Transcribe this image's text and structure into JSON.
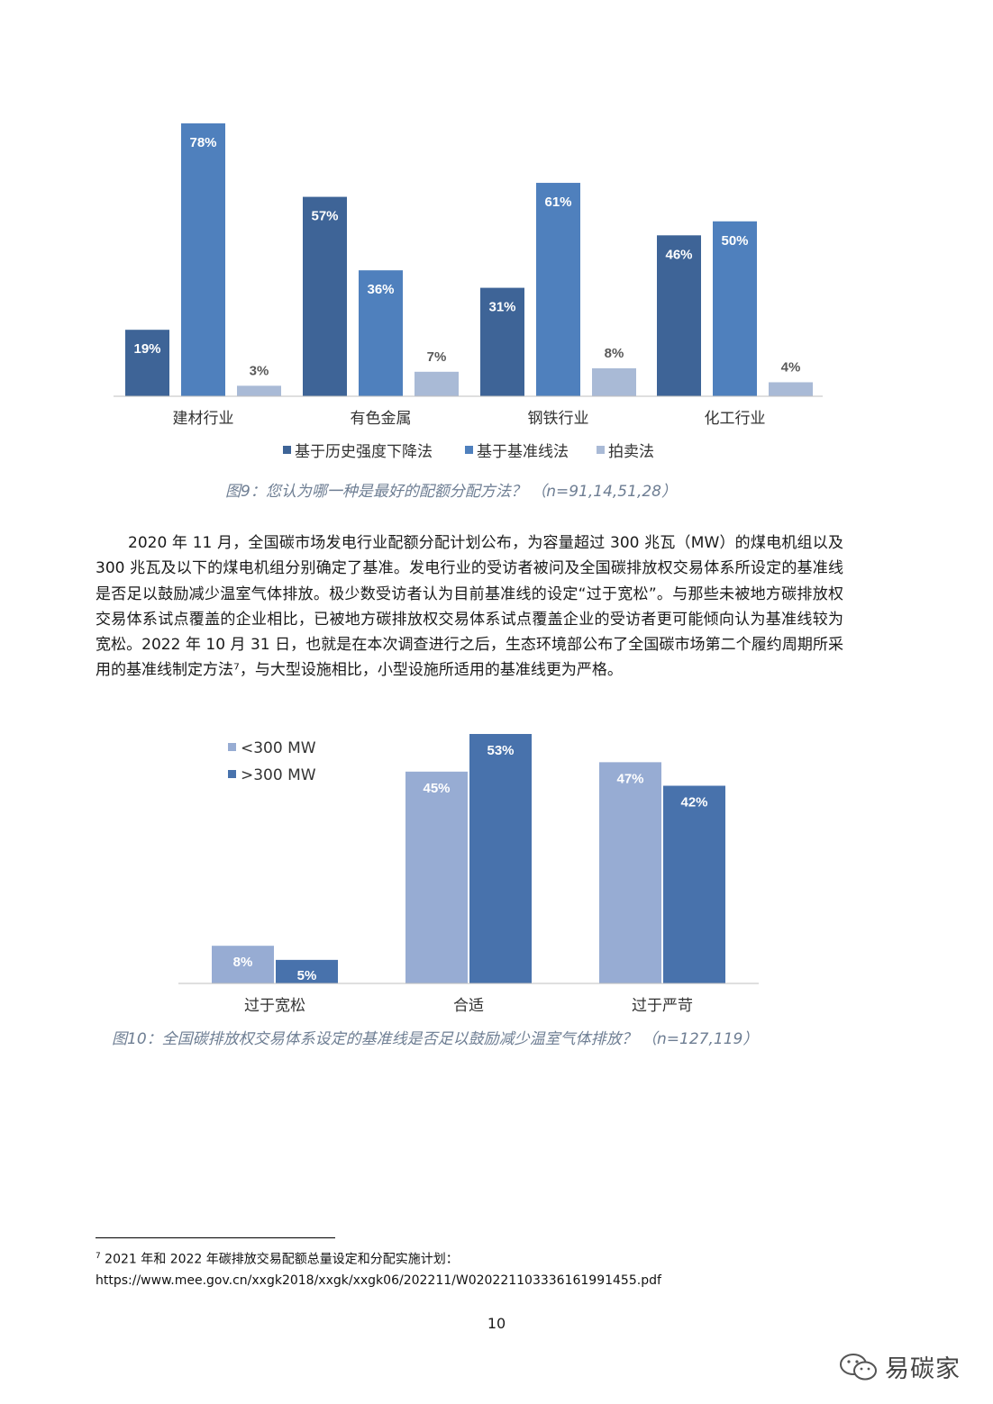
{
  "colors": {
    "dark": "#3e6497",
    "mid": "#4f80bd",
    "light": "#a9bad6",
    "lightB": "#97acd3",
    "darkB": "#4872ac"
  },
  "chart1": {
    "caption": "图9：您认为哪一种是最好的配额分配方法？ （n=91,14,51,28）",
    "legend": [
      "基于历史强度下降法",
      "基于基准线法",
      "拍卖法"
    ]
  },
  "chart2": {
    "caption": "图10：全国碳排放权交易体系设定的基准线是否足以鼓励减少温室气体排放？ （n=127,119）",
    "legend": [
      "<300 MW",
      ">300 MW"
    ]
  },
  "chart_data": [
    {
      "type": "bar",
      "categories": [
        "建材行业",
        "有色金属",
        "钢铁行业",
        "化工行业"
      ],
      "series": [
        {
          "name": "基于历史强度下降法",
          "values": [
            19,
            57,
            31,
            46
          ],
          "labels": [
            "19%",
            "57%",
            "31%",
            "46%"
          ]
        },
        {
          "name": "基于基准线法",
          "values": [
            78,
            36,
            61,
            50
          ],
          "labels": [
            "78%",
            "36%",
            "61%",
            "50%"
          ]
        },
        {
          "name": "拍卖法",
          "values": [
            3,
            7,
            8,
            4
          ],
          "labels": [
            "3%",
            "7%",
            "8%",
            "4%"
          ]
        }
      ],
      "title": "",
      "xlabel": "",
      "ylabel": "",
      "ylim": [
        0,
        78
      ],
      "grid": false,
      "legend_position": "bottom"
    },
    {
      "type": "bar",
      "categories": [
        "过于宽松",
        "合适",
        "过于严苛"
      ],
      "series": [
        {
          "name": "<300 MW",
          "values": [
            8,
            45,
            47
          ],
          "labels": [
            "8%",
            "45%",
            "47%"
          ]
        },
        {
          "name": ">300 MW",
          "values": [
            5,
            53,
            42
          ],
          "labels": [
            "5%",
            "53%",
            "42%"
          ]
        }
      ],
      "title": "",
      "xlabel": "",
      "ylabel": "",
      "ylim": [
        0,
        53
      ],
      "grid": false,
      "legend_position": "top-left"
    }
  ],
  "paragraph": "2020 年 11 月，全国碳市场发电行业配额分配计划公布，为容量超过 300 兆瓦（MW）的煤电机组以及 300 兆瓦及以下的煤电机组分别确定了基准。发电行业的受访者被问及全国碳排放权交易体系所设定的基准线是否足以鼓励减少温室气体排放。极少数受访者认为目前基准线的设定“过于宽松”。与那些未被地方碳排放权交易体系试点覆盖的企业相比，已被地方碳排放权交易体系试点覆盖企业的受访者更可能倾向认为基准线较为宽松。2022 年 10 月 31 日，也就是在本次调查进行之后，生态环境部公布了全国碳市场第二个履约周期所采用的基准线制定方法⁷，与大型设施相比，小型设施所适用的基准线更为严格。",
  "footnote": {
    "marker": "7",
    "line1": " 2021 年和 2022 年碳排放交易配额总量设定和分配实施计划：",
    "line2": "https://www.mee.gov.cn/xxgk2018/xxgk/xxgk06/202211/W020221103336161991455.pdf"
  },
  "page_number": "10",
  "watermark": {
    "text": "易碳家",
    "icon": "wechat-icon"
  }
}
